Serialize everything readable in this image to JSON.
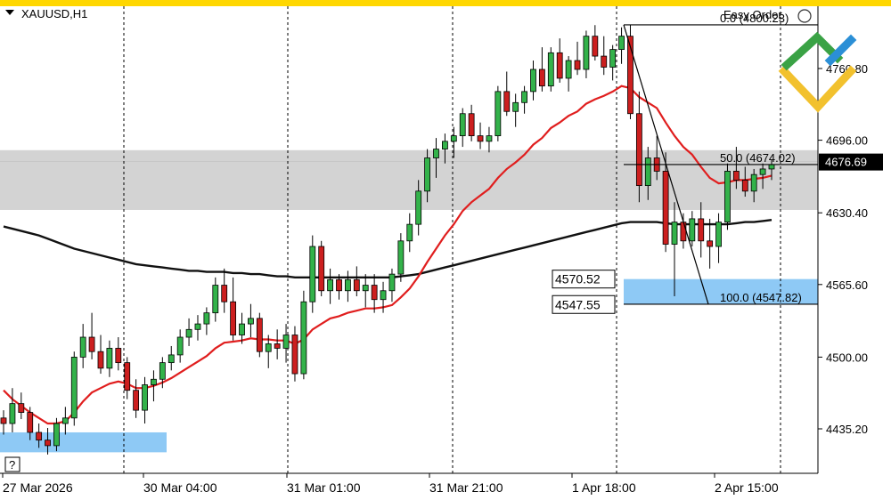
{
  "header": {
    "symbol": "XAUUSD,H1",
    "easy_order": "Easy Order",
    "help_glyph": "?"
  },
  "colors": {
    "top_band": "#ffd700",
    "zone_gray": "#d3d3d3",
    "zone_blue": "#8ec9f5",
    "bull_candle": "#33b24a",
    "bear_candle": "#cc1f1f",
    "ma_fast": "#e01e1e",
    "ma_slow": "#111111",
    "grid": "#000000",
    "logo_green": "#3aa245",
    "logo_blue": "#2b8fd6",
    "logo_yellow": "#f2c12e"
  },
  "chart_data": {
    "type": "candlestick",
    "symbol": "XAUUSD",
    "timeframe": "H1",
    "y_axis": {
      "ticks": [
        4435.2,
        4500.0,
        4565.6,
        4630.4,
        4696.0,
        4760.8
      ],
      "tick_labels": [
        "4435.20",
        "4500.00",
        "4565.60",
        "4630.40",
        "4696.00",
        "4760.80"
      ],
      "range": [
        4395,
        4805
      ]
    },
    "x_axis": {
      "labels": [
        "27 Mar 2026",
        "30 Mar 04:00",
        "31 Mar 01:00",
        "31 Mar 21:00",
        "1 Apr 18:00",
        "2 Apr 15:00"
      ]
    },
    "current_price": {
      "value": 4676.69,
      "label": "4676.69"
    },
    "fib_levels": [
      {
        "label": "0.0 (4800.23)",
        "value": 4800.23
      },
      {
        "label": "50.0 (4674.02)",
        "value": 4674.02
      },
      {
        "label": "100.0 (4547.82)",
        "value": 4547.82
      }
    ],
    "price_labels": [
      {
        "label": "4570.52",
        "value": 4570.52
      },
      {
        "label": "4547.55",
        "value": 4547.55
      }
    ],
    "zones": [
      {
        "name": "gray-zone",
        "from": 4633,
        "to": 4687
      },
      {
        "name": "blue-zone-right",
        "from": 4547.82,
        "to": 4570.52
      },
      {
        "name": "blue-zone-left",
        "from": 4414,
        "to": 4432
      }
    ],
    "candles": [
      [
        4445,
        4452,
        4430,
        4440
      ],
      [
        4440,
        4472,
        4432,
        4458
      ],
      [
        4458,
        4468,
        4444,
        4450
      ],
      [
        4450,
        4455,
        4425,
        4432
      ],
      [
        4432,
        4440,
        4418,
        4425
      ],
      [
        4425,
        4436,
        4412,
        4420
      ],
      [
        4420,
        4445,
        4415,
        4440
      ],
      [
        4440,
        4455,
        4430,
        4445
      ],
      [
        4445,
        4505,
        4438,
        4500
      ],
      [
        4500,
        4530,
        4490,
        4518
      ],
      [
        4518,
        4540,
        4498,
        4505
      ],
      [
        4505,
        4520,
        4485,
        4490
      ],
      [
        4490,
        4515,
        4482,
        4508
      ],
      [
        4508,
        4518,
        4488,
        4495
      ],
      [
        4495,
        4500,
        4462,
        4470
      ],
      [
        4470,
        4480,
        4445,
        4452
      ],
      [
        4452,
        4482,
        4440,
        4475
      ],
      [
        4475,
        4488,
        4460,
        4480
      ],
      [
        4480,
        4500,
        4472,
        4495
      ],
      [
        4495,
        4510,
        4488,
        4502
      ],
      [
        4502,
        4525,
        4495,
        4518
      ],
      [
        4518,
        4535,
        4510,
        4525
      ],
      [
        4525,
        4538,
        4515,
        4530
      ],
      [
        4530,
        4545,
        4520,
        4540
      ],
      [
        4540,
        4572,
        4532,
        4565
      ],
      [
        4565,
        4580,
        4540,
        4550
      ],
      [
        4550,
        4572,
        4515,
        4520
      ],
      [
        4520,
        4540,
        4512,
        4530
      ],
      [
        4530,
        4548,
        4518,
        4535
      ],
      [
        4535,
        4540,
        4500,
        4505
      ],
      [
        4505,
        4520,
        4490,
        4512
      ],
      [
        4512,
        4525,
        4498,
        4508
      ],
      [
        4508,
        4530,
        4495,
        4520
      ],
      [
        4520,
        4528,
        4478,
        4485
      ],
      [
        4485,
        4560,
        4480,
        4550
      ],
      [
        4550,
        4610,
        4540,
        4600
      ],
      [
        4600,
        4605,
        4555,
        4560
      ],
      [
        4560,
        4580,
        4548,
        4570
      ],
      [
        4570,
        4575,
        4552,
        4560
      ],
      [
        4560,
        4578,
        4550,
        4570
      ],
      [
        4570,
        4582,
        4555,
        4560
      ],
      [
        4560,
        4575,
        4545,
        4565
      ],
      [
        4565,
        4575,
        4540,
        4552
      ],
      [
        4552,
        4568,
        4540,
        4560
      ],
      [
        4560,
        4580,
        4550,
        4575
      ],
      [
        4575,
        4612,
        4568,
        4605
      ],
      [
        4605,
        4630,
        4595,
        4620
      ],
      [
        4620,
        4660,
        4610,
        4650
      ],
      [
        4650,
        4688,
        4640,
        4680
      ],
      [
        4680,
        4698,
        4662,
        4688
      ],
      [
        4688,
        4702,
        4675,
        4695
      ],
      [
        4695,
        4708,
        4680,
        4700
      ],
      [
        4700,
        4725,
        4690,
        4720
      ],
      [
        4720,
        4728,
        4695,
        4700
      ],
      [
        4700,
        4712,
        4688,
        4695
      ],
      [
        4695,
        4708,
        4685,
        4700
      ],
      [
        4700,
        4745,
        4695,
        4740
      ],
      [
        4740,
        4758,
        4718,
        4722
      ],
      [
        4722,
        4738,
        4708,
        4730
      ],
      [
        4730,
        4745,
        4720,
        4740
      ],
      [
        4740,
        4768,
        4732,
        4760
      ],
      [
        4760,
        4780,
        4740,
        4745
      ],
      [
        4745,
        4780,
        4740,
        4775
      ],
      [
        4775,
        4788,
        4748,
        4752
      ],
      [
        4752,
        4772,
        4740,
        4768
      ],
      [
        4768,
        4785,
        4755,
        4760
      ],
      [
        4760,
        4795,
        4752,
        4790
      ],
      [
        4790,
        4800,
        4768,
        4772
      ],
      [
        4772,
        4790,
        4755,
        4762
      ],
      [
        4762,
        4782,
        4750,
        4778
      ],
      [
        4778,
        4798,
        4765,
        4790
      ],
      [
        4790,
        4800,
        4715,
        4720
      ],
      [
        4720,
        4740,
        4640,
        4655
      ],
      [
        4655,
        4690,
        4642,
        4680
      ],
      [
        4680,
        4700,
        4660,
        4668
      ],
      [
        4668,
        4685,
        4595,
        4602
      ],
      [
        4602,
        4640,
        4555,
        4622
      ],
      [
        4622,
        4630,
        4598,
        4605
      ],
      [
        4605,
        4632,
        4600,
        4625
      ],
      [
        4625,
        4640,
        4590,
        4605
      ],
      [
        4605,
        4625,
        4580,
        4600
      ],
      [
        4600,
        4630,
        4585,
        4622
      ],
      [
        4622,
        4675,
        4615,
        4668
      ],
      [
        4668,
        4690,
        4652,
        4660
      ],
      [
        4660,
        4672,
        4645,
        4650
      ],
      [
        4650,
        4670,
        4640,
        4665
      ],
      [
        4665,
        4675,
        4652,
        4670
      ],
      [
        4670,
        4678,
        4660,
        4674
      ]
    ],
    "series": [
      {
        "values": [
          4470,
          4462,
          4456,
          4450,
          4445,
          4440,
          4440,
          4442,
          4450,
          4460,
          4468,
          4472,
          4476,
          4478,
          4476,
          4472,
          4472,
          4474,
          4477,
          4481,
          4486,
          4491,
          4496,
          4501,
          4508,
          4513,
          4514,
          4515,
          4517,
          4516,
          4516,
          4515,
          4515,
          4512,
          4516,
          4525,
          4530,
          4535,
          4537,
          4540,
          4542,
          4544,
          4544,
          4545,
          4547,
          4554,
          4562,
          4573,
          4586,
          4598,
          4610,
          4620,
          4632,
          4640,
          4646,
          4652,
          4662,
          4670,
          4676,
          4683,
          4692,
          4698,
          4707,
          4712,
          4718,
          4722,
          4729,
          4733,
          4736,
          4740,
          4745,
          4743,
          4735,
          4730,
          4725,
          4712,
          4700,
          4690,
          4683,
          4672,
          4662,
          4657,
          4658,
          4660,
          4660,
          4661,
          4662,
          4664
        ]
      },
      {
        "values": [
          4618,
          4616,
          4614,
          4612,
          4610,
          4607,
          4604,
          4601,
          4598,
          4596,
          4594,
          4592,
          4590,
          4588,
          4586,
          4584,
          4583,
          4582,
          4581,
          4580,
          4579,
          4578,
          4578,
          4577,
          4577,
          4577,
          4576,
          4576,
          4575,
          4575,
          4574,
          4573,
          4573,
          4572,
          4572,
          4572,
          4572,
          4572,
          4572,
          4572,
          4572,
          4572,
          4572,
          4572,
          4572,
          4573,
          4574,
          4575,
          4577,
          4579,
          4581,
          4583,
          4585,
          4587,
          4589,
          4591,
          4593,
          4595,
          4597,
          4599,
          4601,
          4603,
          4605,
          4607,
          4609,
          4611,
          4613,
          4615,
          4617,
          4619,
          4621,
          4622,
          4622,
          4622,
          4622,
          4621,
          4620,
          4620,
          4620,
          4620,
          4620,
          4620,
          4620,
          4621,
          4622,
          4622,
          4623,
          4624
        ]
      }
    ]
  }
}
